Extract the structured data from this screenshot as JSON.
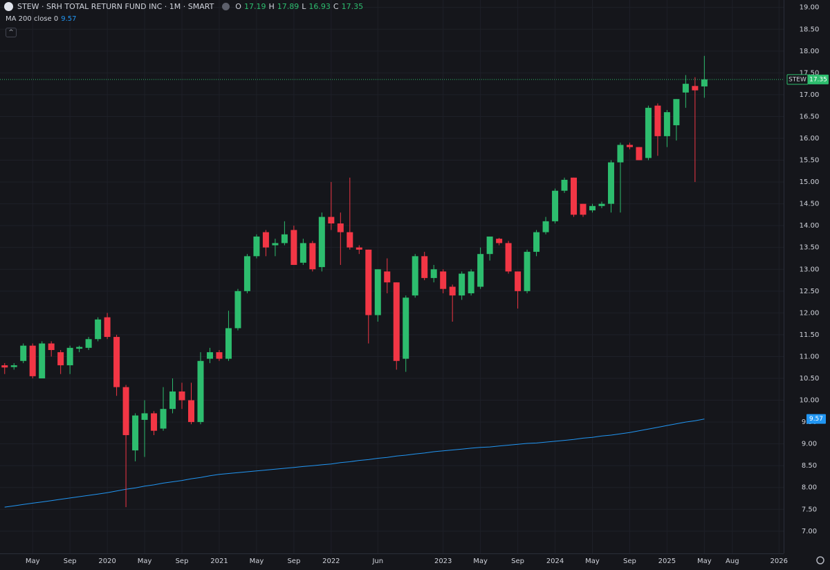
{
  "chart_data": {
    "type": "candlestick",
    "title": "STEW · SRH TOTAL RETURN FUND INC · 1M · SMART",
    "ohlc_labels": [
      "O",
      "H",
      "L",
      "C"
    ],
    "grid": true,
    "xlim": [
      -0.5,
      83.5
    ],
    "xticks": [
      {
        "value": 3,
        "label": "May"
      },
      {
        "value": 7,
        "label": "Sep"
      },
      {
        "value": 11,
        "label": "2020"
      },
      {
        "value": 15,
        "label": "May"
      },
      {
        "value": 19,
        "label": "Sep"
      },
      {
        "value": 23,
        "label": "2021"
      },
      {
        "value": 27,
        "label": "May"
      },
      {
        "value": 31,
        "label": "Sep"
      },
      {
        "value": 35,
        "label": "2022"
      },
      {
        "value": 40,
        "label": "Jun"
      },
      {
        "value": 47,
        "label": "2023"
      },
      {
        "value": 51,
        "label": "May"
      },
      {
        "value": 55,
        "label": "Sep"
      },
      {
        "value": 59,
        "label": "2024"
      },
      {
        "value": 63,
        "label": "May"
      },
      {
        "value": 67,
        "label": "Sep"
      },
      {
        "value": 71,
        "label": "2025"
      },
      {
        "value": 75,
        "label": "May"
      },
      {
        "value": 78,
        "label": "Aug"
      },
      {
        "value": 83,
        "label": "2026"
      }
    ],
    "ylim": [
      6.49,
      19.17
    ],
    "yticks": [
      {
        "value": 7,
        "label": "7.00"
      },
      {
        "value": 7.5,
        "label": "7.50"
      },
      {
        "value": 8,
        "label": "8.00"
      },
      {
        "value": 8.5,
        "label": "8.50"
      },
      {
        "value": 9,
        "label": "9.00"
      },
      {
        "value": 9.5,
        "label": "9.50"
      },
      {
        "value": 10,
        "label": "10.00"
      },
      {
        "value": 10.5,
        "label": "10.50"
      },
      {
        "value": 11,
        "label": "11.00"
      },
      {
        "value": 11.5,
        "label": "11.50"
      },
      {
        "value": 12,
        "label": "12.00"
      },
      {
        "value": 12.5,
        "label": "12.50"
      },
      {
        "value": 13,
        "label": "13.00"
      },
      {
        "value": 13.5,
        "label": "13.50"
      },
      {
        "value": 14,
        "label": "14.00"
      },
      {
        "value": 14.5,
        "label": "14.50"
      },
      {
        "value": 15,
        "label": "15.00"
      },
      {
        "value": 15.5,
        "label": "15.50"
      },
      {
        "value": 16,
        "label": "16.00"
      },
      {
        "value": 16.5,
        "label": "16.50"
      },
      {
        "value": 17,
        "label": "17.00"
      },
      {
        "value": 17.5,
        "label": "17.50"
      },
      {
        "value": 18,
        "label": "18.00"
      },
      {
        "value": 18.5,
        "label": "18.50"
      },
      {
        "value": 19,
        "label": "19.00"
      }
    ],
    "series": [
      {
        "name": "STEW",
        "type": "candlestick",
        "up_color": "#2dbd6e",
        "down_color": "#f23645",
        "open": [
          10.8,
          10.76,
          10.9,
          11.25,
          10.5,
          11.3,
          11.1,
          10.8,
          11.18,
          11.2,
          11.4,
          11.9,
          11.45,
          10.3,
          8.85,
          9.55,
          9.7,
          9.35,
          9.8,
          10.2,
          10.0,
          9.5,
          10.95,
          11.1,
          10.95,
          11.65,
          12.5,
          13.3,
          13.85,
          13.55,
          13.6,
          13.9,
          13.15,
          13.6,
          13.05,
          14.2,
          14.05,
          13.85,
          13.5,
          13.45,
          11.95,
          12.95,
          12.7,
          10.95,
          12.4,
          13.3,
          12.8,
          12.95,
          12.6,
          12.4,
          12.45,
          12.6,
          13.35,
          13.7,
          13.6,
          12.95,
          12.5,
          13.4,
          13.85,
          14.1,
          14.8,
          15.1,
          14.5,
          14.35,
          14.45,
          14.5,
          15.45,
          15.85,
          15.8,
          15.55,
          16.75,
          16.05,
          16.3,
          17.05,
          17.2,
          17.19
        ],
        "high": [
          10.85,
          10.85,
          11.3,
          11.3,
          11.35,
          11.35,
          11.15,
          11.25,
          11.25,
          11.45,
          11.9,
          12.0,
          11.5,
          10.35,
          9.7,
          10.0,
          9.75,
          10.3,
          10.5,
          10.4,
          10.4,
          11.1,
          11.2,
          11.15,
          12.05,
          12.55,
          13.35,
          13.8,
          13.9,
          13.7,
          14.1,
          14.0,
          13.7,
          13.65,
          14.3,
          15.0,
          14.3,
          15.1,
          13.55,
          13.45,
          13.0,
          13.25,
          12.7,
          12.4,
          13.35,
          13.4,
          13.1,
          13.0,
          12.65,
          12.95,
          13.0,
          13.5,
          13.75,
          13.72,
          13.65,
          12.95,
          13.45,
          13.9,
          14.2,
          14.85,
          15.1,
          15.1,
          14.5,
          14.5,
          14.55,
          15.5,
          15.9,
          15.9,
          15.8,
          16.75,
          16.8,
          16.65,
          16.9,
          17.45,
          17.4,
          17.89
        ],
        "low": [
          10.6,
          10.7,
          10.85,
          10.5,
          10.5,
          11.0,
          10.6,
          10.6,
          11.1,
          11.15,
          11.35,
          11.4,
          10.1,
          7.55,
          8.6,
          8.7,
          9.2,
          9.3,
          9.7,
          9.8,
          9.45,
          9.45,
          10.85,
          10.9,
          10.9,
          11.6,
          12.45,
          13.25,
          13.3,
          13.3,
          13.55,
          13.1,
          13.1,
          12.95,
          12.95,
          13.9,
          13.1,
          13.45,
          13.35,
          11.3,
          11.8,
          12.45,
          10.7,
          10.65,
          12.35,
          12.75,
          12.7,
          12.45,
          11.8,
          12.3,
          12.4,
          12.55,
          13.2,
          13.55,
          12.9,
          12.1,
          12.45,
          13.3,
          13.8,
          14.05,
          14.75,
          14.2,
          14.2,
          14.3,
          14.4,
          14.3,
          14.3,
          15.75,
          15.5,
          15.5,
          15.6,
          15.8,
          15.95,
          16.7,
          15.0,
          16.93
        ],
        "close": [
          10.75,
          10.8,
          11.25,
          10.55,
          11.3,
          11.15,
          10.8,
          11.2,
          11.22,
          11.4,
          11.85,
          11.45,
          10.3,
          9.2,
          9.65,
          9.7,
          9.3,
          9.8,
          10.2,
          10.0,
          9.5,
          10.9,
          11.1,
          10.95,
          11.65,
          12.5,
          13.3,
          13.75,
          13.5,
          13.6,
          13.8,
          13.1,
          13.6,
          13.0,
          14.2,
          14.05,
          13.85,
          13.5,
          13.45,
          11.95,
          13.0,
          12.7,
          10.9,
          12.35,
          13.3,
          12.8,
          13.0,
          12.55,
          12.4,
          12.9,
          12.95,
          13.35,
          13.75,
          13.6,
          12.95,
          12.5,
          13.4,
          13.85,
          14.1,
          14.8,
          15.05,
          14.25,
          14.25,
          14.45,
          14.5,
          15.45,
          15.85,
          15.8,
          15.5,
          16.7,
          16.05,
          16.6,
          16.9,
          17.25,
          17.1,
          17.35
        ]
      },
      {
        "name": "MA 200 close 0",
        "type": "line",
        "color": "#2196f3",
        "values": [
          7.55,
          7.58,
          7.61,
          7.64,
          7.67,
          7.7,
          7.73,
          7.76,
          7.79,
          7.82,
          7.85,
          7.88,
          7.92,
          7.96,
          7.99,
          8.03,
          8.06,
          8.1,
          8.13,
          8.16,
          8.2,
          8.23,
          8.27,
          8.3,
          8.32,
          8.34,
          8.36,
          8.38,
          8.4,
          8.42,
          8.44,
          8.46,
          8.48,
          8.5,
          8.52,
          8.54,
          8.57,
          8.59,
          8.62,
          8.64,
          8.67,
          8.69,
          8.72,
          8.74,
          8.77,
          8.79,
          8.82,
          8.84,
          8.86,
          8.88,
          8.9,
          8.92,
          8.93,
          8.95,
          8.97,
          8.99,
          9.01,
          9.02,
          9.04,
          9.06,
          9.08,
          9.1,
          9.13,
          9.15,
          9.18,
          9.2,
          9.23,
          9.26,
          9.3,
          9.34,
          9.38,
          9.42,
          9.46,
          9.5,
          9.53,
          9.57
        ]
      }
    ]
  }
}
